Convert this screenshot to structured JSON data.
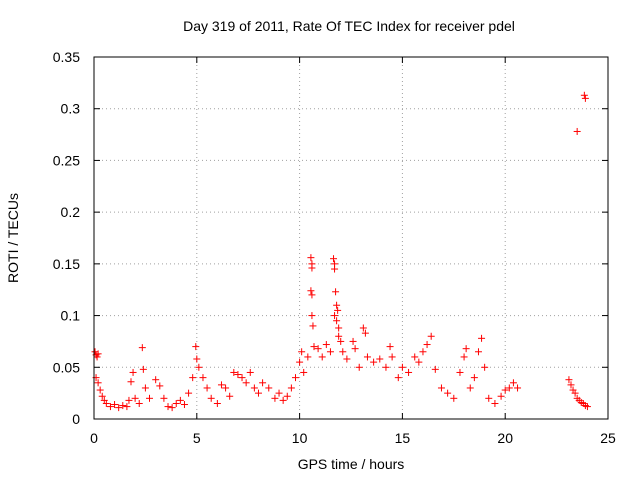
{
  "chart_data": {
    "type": "scatter",
    "title": "Day 319 of 2011, Rate Of TEC Index for receiver pdel",
    "xlabel": "GPS time / hours",
    "ylabel": "ROTI / TECUs",
    "xlim": [
      0,
      25
    ],
    "ylim": [
      0,
      0.35
    ],
    "x_ticks": [
      0,
      5,
      10,
      15,
      20,
      25
    ],
    "x_tick_labels": [
      "0",
      "5",
      "10",
      "15",
      "20",
      "25"
    ],
    "y_ticks": [
      0,
      0.05,
      0.1,
      0.15,
      0.2,
      0.25,
      0.3,
      0.35
    ],
    "y_tick_labels": [
      "0",
      "0.05",
      "0.1",
      "0.15",
      "0.2",
      "0.25",
      "0.3",
      "0.35"
    ],
    "grid": true,
    "legend": false,
    "marker": "+",
    "colors": {
      "points": "#ff0000",
      "axes": "#000000",
      "grid": "#a0a0a0"
    },
    "series": [
      {
        "values": [
          {
            "x": 0.05,
            "y": 0.065
          },
          {
            "x": 0.1,
            "y": 0.062
          },
          {
            "x": 0.15,
            "y": 0.06
          },
          {
            "x": 0.2,
            "y": 0.063
          },
          {
            "x": 0.1,
            "y": 0.04
          },
          {
            "x": 0.2,
            "y": 0.035
          },
          {
            "x": 0.3,
            "y": 0.028
          },
          {
            "x": 0.4,
            "y": 0.022
          },
          {
            "x": 0.5,
            "y": 0.018
          },
          {
            "x": 0.6,
            "y": 0.015
          },
          {
            "x": 0.8,
            "y": 0.012
          },
          {
            "x": 1.0,
            "y": 0.014
          },
          {
            "x": 1.2,
            "y": 0.011
          },
          {
            "x": 1.4,
            "y": 0.013
          },
          {
            "x": 1.6,
            "y": 0.012
          },
          {
            "x": 1.7,
            "y": 0.018
          },
          {
            "x": 1.8,
            "y": 0.036
          },
          {
            "x": 1.9,
            "y": 0.045
          },
          {
            "x": 2.0,
            "y": 0.02
          },
          {
            "x": 2.2,
            "y": 0.015
          },
          {
            "x": 2.35,
            "y": 0.069
          },
          {
            "x": 2.4,
            "y": 0.048
          },
          {
            "x": 2.5,
            "y": 0.03
          },
          {
            "x": 2.7,
            "y": 0.02
          },
          {
            "x": 3.0,
            "y": 0.038
          },
          {
            "x": 3.2,
            "y": 0.032
          },
          {
            "x": 3.4,
            "y": 0.02
          },
          {
            "x": 3.6,
            "y": 0.012
          },
          {
            "x": 3.8,
            "y": 0.011
          },
          {
            "x": 4.0,
            "y": 0.015
          },
          {
            "x": 4.2,
            "y": 0.018
          },
          {
            "x": 4.4,
            "y": 0.014
          },
          {
            "x": 4.6,
            "y": 0.025
          },
          {
            "x": 4.8,
            "y": 0.04
          },
          {
            "x": 4.95,
            "y": 0.07
          },
          {
            "x": 5.0,
            "y": 0.058
          },
          {
            "x": 5.1,
            "y": 0.05
          },
          {
            "x": 5.3,
            "y": 0.04
          },
          {
            "x": 5.5,
            "y": 0.03
          },
          {
            "x": 5.7,
            "y": 0.02
          },
          {
            "x": 6.0,
            "y": 0.015
          },
          {
            "x": 6.2,
            "y": 0.033
          },
          {
            "x": 6.4,
            "y": 0.03
          },
          {
            "x": 6.6,
            "y": 0.022
          },
          {
            "x": 6.8,
            "y": 0.045
          },
          {
            "x": 7.0,
            "y": 0.043
          },
          {
            "x": 7.2,
            "y": 0.04
          },
          {
            "x": 7.4,
            "y": 0.035
          },
          {
            "x": 7.6,
            "y": 0.045
          },
          {
            "x": 7.8,
            "y": 0.03
          },
          {
            "x": 8.0,
            "y": 0.025
          },
          {
            "x": 8.2,
            "y": 0.035
          },
          {
            "x": 8.5,
            "y": 0.03
          },
          {
            "x": 8.8,
            "y": 0.02
          },
          {
            "x": 9.0,
            "y": 0.025
          },
          {
            "x": 9.2,
            "y": 0.018
          },
          {
            "x": 9.4,
            "y": 0.022
          },
          {
            "x": 9.6,
            "y": 0.03
          },
          {
            "x": 9.8,
            "y": 0.04
          },
          {
            "x": 10.0,
            "y": 0.055
          },
          {
            "x": 10.1,
            "y": 0.065
          },
          {
            "x": 10.2,
            "y": 0.045
          },
          {
            "x": 10.4,
            "y": 0.06
          },
          {
            "x": 10.55,
            "y": 0.156
          },
          {
            "x": 10.6,
            "y": 0.15
          },
          {
            "x": 10.6,
            "y": 0.146
          },
          {
            "x": 10.55,
            "y": 0.124
          },
          {
            "x": 10.6,
            "y": 0.12
          },
          {
            "x": 10.6,
            "y": 0.1
          },
          {
            "x": 10.65,
            "y": 0.09
          },
          {
            "x": 10.7,
            "y": 0.07
          },
          {
            "x": 10.9,
            "y": 0.068
          },
          {
            "x": 11.1,
            "y": 0.06
          },
          {
            "x": 11.3,
            "y": 0.072
          },
          {
            "x": 11.5,
            "y": 0.065
          },
          {
            "x": 11.65,
            "y": 0.155
          },
          {
            "x": 11.7,
            "y": 0.15
          },
          {
            "x": 11.7,
            "y": 0.145
          },
          {
            "x": 11.75,
            "y": 0.123
          },
          {
            "x": 11.8,
            "y": 0.11
          },
          {
            "x": 11.85,
            "y": 0.105
          },
          {
            "x": 11.7,
            "y": 0.1
          },
          {
            "x": 11.8,
            "y": 0.095
          },
          {
            "x": 11.9,
            "y": 0.088
          },
          {
            "x": 11.9,
            "y": 0.08
          },
          {
            "x": 12.0,
            "y": 0.075
          },
          {
            "x": 12.1,
            "y": 0.065
          },
          {
            "x": 12.3,
            "y": 0.058
          },
          {
            "x": 12.6,
            "y": 0.075
          },
          {
            "x": 12.7,
            "y": 0.068
          },
          {
            "x": 12.9,
            "y": 0.05
          },
          {
            "x": 13.1,
            "y": 0.088
          },
          {
            "x": 13.2,
            "y": 0.083
          },
          {
            "x": 13.3,
            "y": 0.06
          },
          {
            "x": 13.6,
            "y": 0.055
          },
          {
            "x": 13.9,
            "y": 0.058
          },
          {
            "x": 14.2,
            "y": 0.05
          },
          {
            "x": 14.4,
            "y": 0.07
          },
          {
            "x": 14.5,
            "y": 0.06
          },
          {
            "x": 14.8,
            "y": 0.04
          },
          {
            "x": 15.0,
            "y": 0.05
          },
          {
            "x": 15.3,
            "y": 0.045
          },
          {
            "x": 15.6,
            "y": 0.06
          },
          {
            "x": 15.8,
            "y": 0.055
          },
          {
            "x": 16.0,
            "y": 0.065
          },
          {
            "x": 16.2,
            "y": 0.072
          },
          {
            "x": 16.4,
            "y": 0.08
          },
          {
            "x": 16.6,
            "y": 0.048
          },
          {
            "x": 16.9,
            "y": 0.03
          },
          {
            "x": 17.2,
            "y": 0.025
          },
          {
            "x": 17.5,
            "y": 0.02
          },
          {
            "x": 17.8,
            "y": 0.045
          },
          {
            "x": 18.0,
            "y": 0.06
          },
          {
            "x": 18.1,
            "y": 0.068
          },
          {
            "x": 18.3,
            "y": 0.03
          },
          {
            "x": 18.5,
            "y": 0.04
          },
          {
            "x": 18.7,
            "y": 0.065
          },
          {
            "x": 18.85,
            "y": 0.078
          },
          {
            "x": 19.0,
            "y": 0.05
          },
          {
            "x": 19.2,
            "y": 0.02
          },
          {
            "x": 19.5,
            "y": 0.015
          },
          {
            "x": 19.8,
            "y": 0.022
          },
          {
            "x": 20.0,
            "y": 0.028
          },
          {
            "x": 20.2,
            "y": 0.03
          },
          {
            "x": 20.4,
            "y": 0.035
          },
          {
            "x": 20.6,
            "y": 0.03
          },
          {
            "x": 23.1,
            "y": 0.038
          },
          {
            "x": 23.2,
            "y": 0.033
          },
          {
            "x": 23.3,
            "y": 0.028
          },
          {
            "x": 23.4,
            "y": 0.025
          },
          {
            "x": 23.5,
            "y": 0.02
          },
          {
            "x": 23.6,
            "y": 0.018
          },
          {
            "x": 23.7,
            "y": 0.016
          },
          {
            "x": 23.8,
            "y": 0.015
          },
          {
            "x": 23.9,
            "y": 0.013
          },
          {
            "x": 24.0,
            "y": 0.012
          },
          {
            "x": 23.5,
            "y": 0.278
          },
          {
            "x": 23.85,
            "y": 0.313
          },
          {
            "x": 23.9,
            "y": 0.31
          }
        ]
      }
    ]
  }
}
